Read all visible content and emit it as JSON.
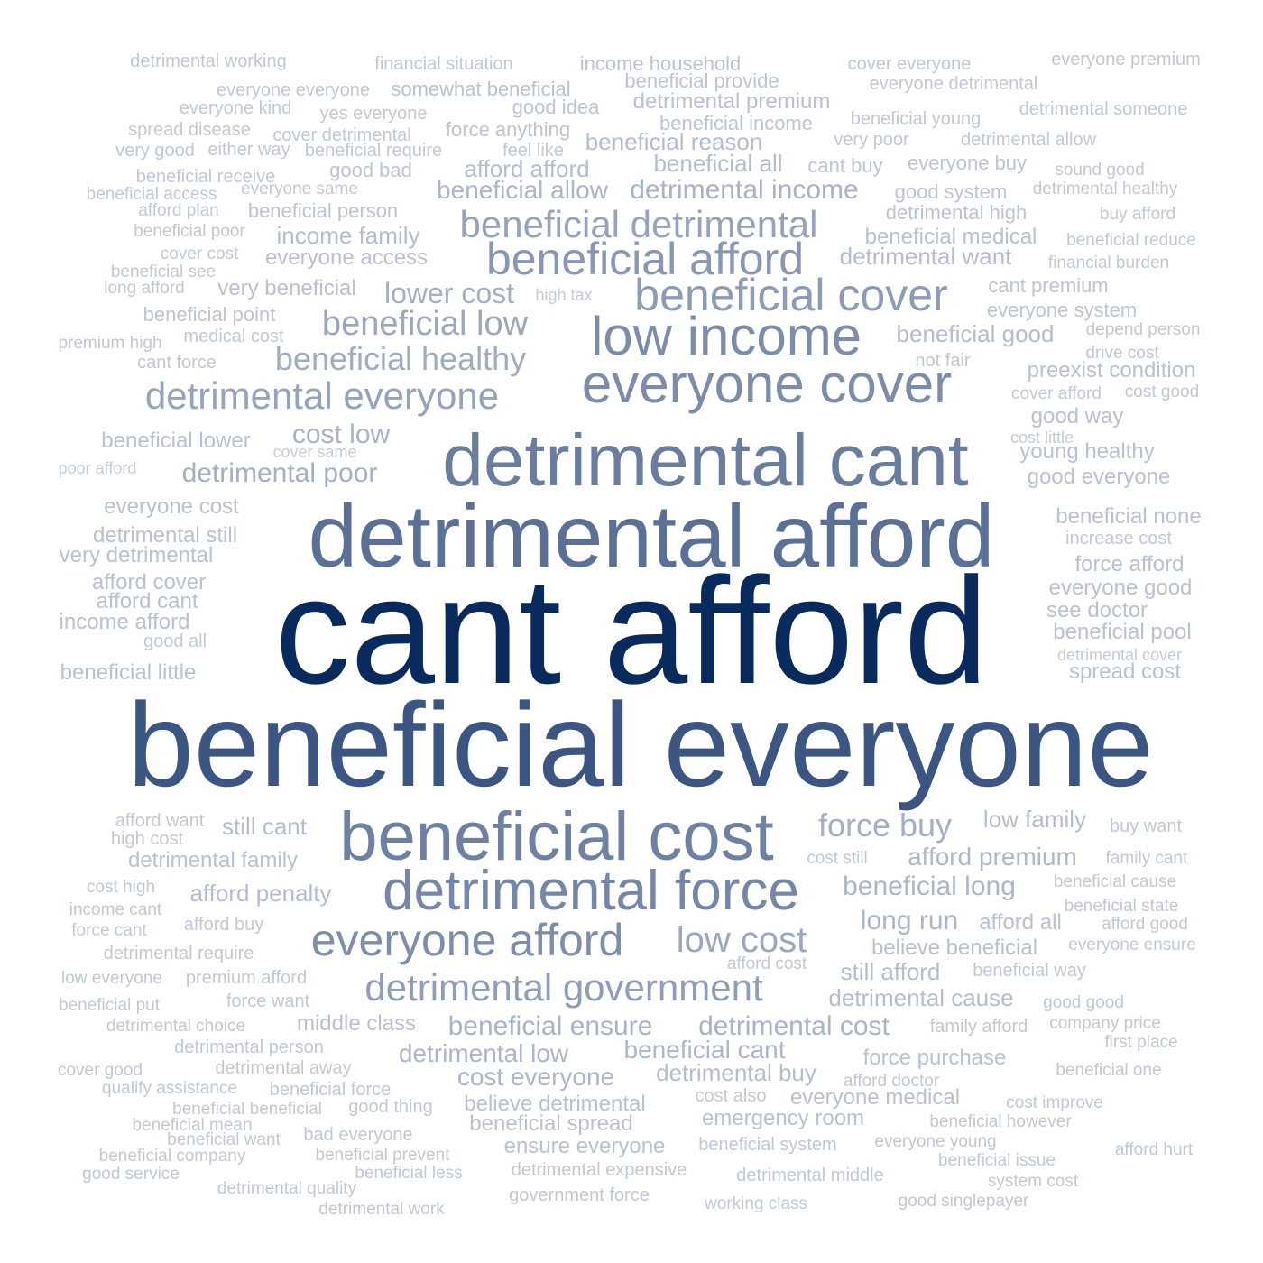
{
  "words": [
    {
      "text": "cant afford",
      "count": 100
    },
    {
      "text": "beneficial everyone",
      "count": 75
    },
    {
      "text": "detrimental afford",
      "count": 56
    },
    {
      "text": "detrimental cant",
      "count": 48
    },
    {
      "text": "everyone cover",
      "count": 36
    },
    {
      "text": "low income",
      "count": 35
    },
    {
      "text": "beneficial cost",
      "count": 40
    },
    {
      "text": "detrimental force",
      "count": 36
    },
    {
      "text": "beneficial cover",
      "count": 32
    },
    {
      "text": "beneficial afford",
      "count": 31
    },
    {
      "text": "everyone afford",
      "count": 31
    },
    {
      "text": "beneficial detrimental",
      "count": 27
    },
    {
      "text": "detrimental everyone",
      "count": 27
    },
    {
      "text": "detrimental government",
      "count": 26
    },
    {
      "text": "beneficial low",
      "count": 24
    },
    {
      "text": "low cost",
      "count": 25
    },
    {
      "text": "force buy",
      "count": 23
    },
    {
      "text": "beneficial healthy",
      "count": 22
    },
    {
      "text": "beneficial ensure",
      "count": 20
    },
    {
      "text": "detrimental cost",
      "count": 20
    },
    {
      "text": "detrimental income",
      "count": 19
    },
    {
      "text": "beneficial long",
      "count": 20
    },
    {
      "text": "long run",
      "count": 19
    },
    {
      "text": "lower cost",
      "count": 19
    },
    {
      "text": "cost low",
      "count": 19
    },
    {
      "text": "detrimental poor",
      "count": 19
    },
    {
      "text": "afford premium",
      "count": 18
    },
    {
      "text": "beneficial allow",
      "count": 18
    },
    {
      "text": "beneficial cant",
      "count": 18
    },
    {
      "text": "detrimental low",
      "count": 18
    },
    {
      "text": "cost everyone",
      "count": 18
    },
    {
      "text": "beneficial reason",
      "count": 16
    },
    {
      "text": "beneficial all",
      "count": 16
    },
    {
      "text": "afford afford",
      "count": 16
    },
    {
      "text": "income family",
      "count": 16
    },
    {
      "text": "detrimental premium",
      "count": 15
    },
    {
      "text": "somewhat beneficial",
      "count": 14
    },
    {
      "text": "detrimental want",
      "count": 16
    },
    {
      "text": "beneficial medical",
      "count": 15
    },
    {
      "text": "beneficial good",
      "count": 16
    },
    {
      "text": "preexist condition",
      "count": 15
    },
    {
      "text": "detrimental cause",
      "count": 15
    },
    {
      "text": "force purchase",
      "count": 15
    },
    {
      "text": "low family",
      "count": 16
    },
    {
      "text": "afford penalty",
      "count": 16
    },
    {
      "text": "afford all",
      "count": 15
    },
    {
      "text": "still afford",
      "count": 16
    },
    {
      "text": "believe beneficial",
      "count": 14
    },
    {
      "text": "believe detrimental",
      "count": 15
    },
    {
      "text": "beneficial spread",
      "count": 15
    },
    {
      "text": "emergency room",
      "count": 14
    },
    {
      "text": "everyone medical",
      "count": 15
    },
    {
      "text": "detrimental buy",
      "count": 15
    },
    {
      "text": "still cant",
      "count": 15
    },
    {
      "text": "everyone access",
      "count": 14
    },
    {
      "text": "very beneficial",
      "count": 14
    },
    {
      "text": "middle class",
      "count": 14
    },
    {
      "text": "ensure everyone",
      "count": 14
    },
    {
      "text": "detrimental family",
      "count": 14
    },
    {
      "text": "everyone cost",
      "count": 14
    },
    {
      "text": "detrimental still",
      "count": 14
    },
    {
      "text": "very detrimental",
      "count": 14
    },
    {
      "text": "afford cover",
      "count": 14
    },
    {
      "text": "afford cant",
      "count": 14
    },
    {
      "text": "income afford",
      "count": 14
    },
    {
      "text": "beneficial little",
      "count": 14
    },
    {
      "text": "beneficial lower",
      "count": 14
    },
    {
      "text": "beneficial none",
      "count": 14
    },
    {
      "text": "force afford",
      "count": 14
    },
    {
      "text": "everyone good",
      "count": 14
    },
    {
      "text": "see doctor",
      "count": 14
    },
    {
      "text": "beneficial pool",
      "count": 14
    },
    {
      "text": "spread cost",
      "count": 14
    },
    {
      "text": "young healthy",
      "count": 14
    },
    {
      "text": "good everyone",
      "count": 14
    },
    {
      "text": "good way",
      "count": 13
    },
    {
      "text": "beneficial person",
      "count": 13
    },
    {
      "text": "beneficial point",
      "count": 13
    },
    {
      "text": "beneficial income",
      "count": 13
    },
    {
      "text": "beneficial provide",
      "count": 13
    },
    {
      "text": "income household",
      "count": 13
    },
    {
      "text": "force anything",
      "count": 13
    },
    {
      "text": "good idea",
      "count": 13
    },
    {
      "text": "detrimental high",
      "count": 13
    },
    {
      "text": "good system",
      "count": 13
    },
    {
      "text": "cant premium",
      "count": 13
    },
    {
      "text": "everyone system",
      "count": 13
    },
    {
      "text": "everyone buy",
      "count": 13
    },
    {
      "text": "beneficial young",
      "count": 12
    },
    {
      "text": "detrimental someone",
      "count": 12
    },
    {
      "text": "cover everyone",
      "count": 12
    },
    {
      "text": "everyone premium",
      "count": 12
    },
    {
      "text": "everyone detrimental",
      "count": 12
    },
    {
      "text": "financial situation",
      "count": 12
    },
    {
      "text": "detrimental working",
      "count": 12
    },
    {
      "text": "everyone everyone",
      "count": 12
    },
    {
      "text": "everyone kind",
      "count": 12
    },
    {
      "text": "yes everyone",
      "count": 12
    },
    {
      "text": "spread disease",
      "count": 12
    },
    {
      "text": "cover detrimental",
      "count": 12
    },
    {
      "text": "very good",
      "count": 12
    },
    {
      "text": "either way",
      "count": 12
    },
    {
      "text": "beneficial require",
      "count": 12
    },
    {
      "text": "feel like",
      "count": 12
    },
    {
      "text": "very poor",
      "count": 12
    },
    {
      "text": "detrimental allow",
      "count": 12
    },
    {
      "text": "cant buy",
      "count": 12
    },
    {
      "text": "good bad",
      "count": 12
    },
    {
      "text": "beneficial receive",
      "count": 12
    },
    {
      "text": "beneficial access",
      "count": 12
    },
    {
      "text": "everyone same",
      "count": 12
    },
    {
      "text": "afford plan",
      "count": 12
    },
    {
      "text": "beneficial poor",
      "count": 12
    },
    {
      "text": "cover cost",
      "count": 12
    },
    {
      "text": "beneficial see",
      "count": 12
    },
    {
      "text": "long afford",
      "count": 12
    },
    {
      "text": "premium high",
      "count": 12
    },
    {
      "text": "medical cost",
      "count": 12
    },
    {
      "text": "cant force",
      "count": 12
    },
    {
      "text": "high tax",
      "count": 12
    },
    {
      "text": "not fair",
      "count": 12
    },
    {
      "text": "sound good",
      "count": 12
    },
    {
      "text": "detrimental healthy",
      "count": 12
    },
    {
      "text": "buy afford",
      "count": 12
    },
    {
      "text": "beneficial reduce",
      "count": 12
    },
    {
      "text": "financial burden",
      "count": 12
    },
    {
      "text": "depend person",
      "count": 12
    },
    {
      "text": "drive cost",
      "count": 12
    },
    {
      "text": "cover afford",
      "count": 12
    },
    {
      "text": "cost good",
      "count": 12
    },
    {
      "text": "cost little",
      "count": 12
    },
    {
      "text": "cover same",
      "count": 11
    },
    {
      "text": "poor afford",
      "count": 11
    },
    {
      "text": "increase cost",
      "count": 12
    },
    {
      "text": "good all",
      "count": 12
    },
    {
      "text": "detrimental cover",
      "count": 11
    },
    {
      "text": "afford want",
      "count": 12
    },
    {
      "text": "high cost",
      "count": 12
    },
    {
      "text": "cost high",
      "count": 12
    },
    {
      "text": "income cant",
      "count": 12
    },
    {
      "text": "force cant",
      "count": 12
    },
    {
      "text": "afford buy",
      "count": 12
    },
    {
      "text": "detrimental require",
      "count": 12
    },
    {
      "text": "low everyone",
      "count": 12
    },
    {
      "text": "premium afford",
      "count": 12
    },
    {
      "text": "beneficial put",
      "count": 12
    },
    {
      "text": "force want",
      "count": 12
    },
    {
      "text": "detrimental choice",
      "count": 12
    },
    {
      "text": "detrimental person",
      "count": 12
    },
    {
      "text": "cover good",
      "count": 12
    },
    {
      "text": "detrimental away",
      "count": 12
    },
    {
      "text": "qualify assistance",
      "count": 12
    },
    {
      "text": "beneficial force",
      "count": 12
    },
    {
      "text": "beneficial beneficial",
      "count": 12
    },
    {
      "text": "good thing",
      "count": 12
    },
    {
      "text": "beneficial mean",
      "count": 12
    },
    {
      "text": "beneficial want",
      "count": 12
    },
    {
      "text": "bad everyone",
      "count": 12
    },
    {
      "text": "beneficial company",
      "count": 12
    },
    {
      "text": "beneficial prevent",
      "count": 12
    },
    {
      "text": "good service",
      "count": 12
    },
    {
      "text": "beneficial less",
      "count": 12
    },
    {
      "text": "detrimental quality",
      "count": 12
    },
    {
      "text": "detrimental work",
      "count": 12
    },
    {
      "text": "cost still",
      "count": 12
    },
    {
      "text": "afford cost",
      "count": 12
    },
    {
      "text": "buy want",
      "count": 12
    },
    {
      "text": "family cant",
      "count": 12
    },
    {
      "text": "beneficial cause",
      "count": 12
    },
    {
      "text": "beneficial state",
      "count": 12
    },
    {
      "text": "afford good",
      "count": 12
    },
    {
      "text": "everyone ensure",
      "count": 12
    },
    {
      "text": "beneficial way",
      "count": 12
    },
    {
      "text": "good good",
      "count": 12
    },
    {
      "text": "family afford",
      "count": 12
    },
    {
      "text": "company price",
      "count": 12
    },
    {
      "text": "first place",
      "count": 12
    },
    {
      "text": "beneficial one",
      "count": 12
    },
    {
      "text": "afford doctor",
      "count": 12
    },
    {
      "text": "cost also",
      "count": 12
    },
    {
      "text": "cost improve",
      "count": 12
    },
    {
      "text": "beneficial however",
      "count": 12
    },
    {
      "text": "everyone young",
      "count": 12
    },
    {
      "text": "beneficial system",
      "count": 12
    },
    {
      "text": "beneficial issue",
      "count": 12
    },
    {
      "text": "afford hurt",
      "count": 12
    },
    {
      "text": "system cost",
      "count": 12
    },
    {
      "text": "good singlepayer",
      "count": 12
    },
    {
      "text": "detrimental expensive",
      "count": 12
    },
    {
      "text": "detrimental middle",
      "count": 12
    },
    {
      "text": "government force",
      "count": 12
    },
    {
      "text": "working class",
      "count": 12
    }
  ]
}
